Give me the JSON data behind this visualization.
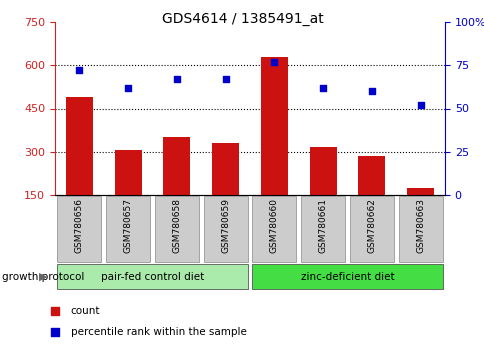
{
  "title": "GDS4614 / 1385491_at",
  "samples": [
    "GSM780656",
    "GSM780657",
    "GSM780658",
    "GSM780659",
    "GSM780660",
    "GSM780661",
    "GSM780662",
    "GSM780663"
  ],
  "counts": [
    490,
    305,
    350,
    330,
    630,
    315,
    285,
    175
  ],
  "percentiles": [
    72,
    62,
    67,
    67,
    77,
    62,
    60,
    52
  ],
  "bar_color": "#cc1111",
  "dot_color": "#0000cc",
  "ylim_left": [
    150,
    750
  ],
  "ylim_right": [
    0,
    100
  ],
  "yticks_left": [
    150,
    300,
    450,
    600,
    750
  ],
  "yticks_right": [
    0,
    25,
    50,
    75,
    100
  ],
  "ytick_labels_right": [
    "0",
    "25",
    "50",
    "75",
    "100%"
  ],
  "grid_values": [
    300,
    450,
    600
  ],
  "groups": [
    {
      "label": "pair-fed control diet",
      "indices": [
        0,
        1,
        2,
        3
      ],
      "color": "#aaeaaa"
    },
    {
      "label": "zinc-deficient diet",
      "indices": [
        4,
        5,
        6,
        7
      ],
      "color": "#44dd44"
    }
  ],
  "group_label": "growth protocol",
  "legend_count_label": "count",
  "legend_pct_label": "percentile rank within the sample",
  "bar_bottom": 150,
  "title_color": "#000000",
  "left_axis_color": "#cc2222",
  "right_axis_color": "#0000cc",
  "label_box_color": "#cccccc",
  "label_box_edge": "#888888"
}
